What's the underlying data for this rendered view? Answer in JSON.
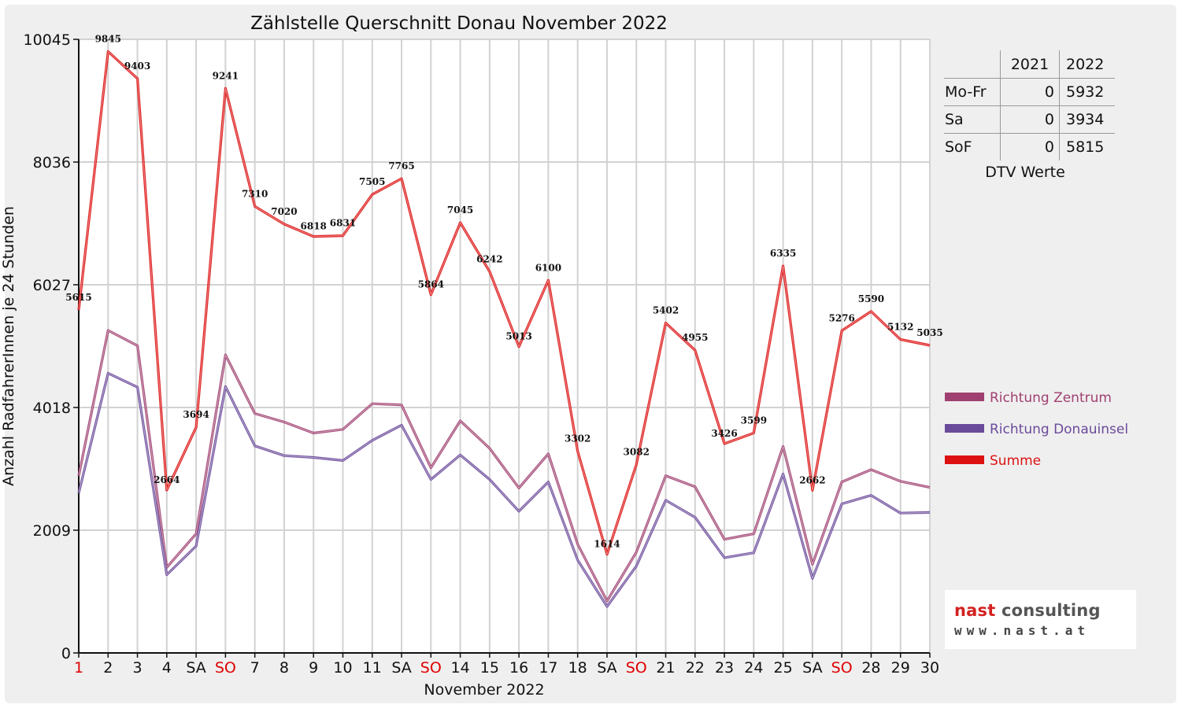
{
  "chart_data": {
    "type": "line",
    "title": "Zählstelle Querschnitt Donau November 2022",
    "xlabel": "November 2022",
    "ylabel": "Anzahl RadfahrerInnen je 24 Stunden",
    "ylim": [
      0,
      10045
    ],
    "yticks": [
      "0",
      "2009",
      "4018",
      "6027",
      "8036",
      "10045"
    ],
    "grid": true,
    "legend_position": "right",
    "categories": [
      "1",
      "2",
      "3",
      "4",
      "SA",
      "SO",
      "7",
      "8",
      "9",
      "10",
      "11",
      "SA",
      "SO",
      "14",
      "15",
      "16",
      "17",
      "18",
      "SA",
      "SO",
      "21",
      "22",
      "23",
      "24",
      "25",
      "SA",
      "SO",
      "28",
      "29",
      "30"
    ],
    "red_categories": [
      0,
      5,
      12,
      19,
      26
    ],
    "series": [
      {
        "name": "Richtung Zentrum",
        "color": "#a04070",
        "values": [
          2900,
          5280,
          5030,
          1400,
          1950,
          4880,
          3920,
          3780,
          3600,
          3660,
          4080,
          4060,
          3030,
          3800,
          3350,
          2700,
          3260,
          1780,
          850,
          1650,
          2900,
          2720,
          1860,
          1950,
          3380,
          1450,
          2800,
          3000,
          2810,
          2710
        ]
      },
      {
        "name": "Richtung Donauinsel",
        "color": "#6a4a9a",
        "values": [
          2620,
          4580,
          4350,
          1280,
          1750,
          4360,
          3390,
          3230,
          3200,
          3150,
          3480,
          3730,
          2840,
          3240,
          2840,
          2320,
          2800,
          1520,
          760,
          1420,
          2500,
          2220,
          1560,
          1640,
          2930,
          1220,
          2440,
          2580,
          2290,
          2300
        ]
      },
      {
        "name": "Summe",
        "color": "#dd1111",
        "values": [
          5615,
          9845,
          9403,
          2664,
          3694,
          9241,
          7310,
          7020,
          6818,
          6831,
          7505,
          7765,
          5864,
          7045,
          6242,
          5013,
          6100,
          3302,
          1614,
          3082,
          5402,
          4955,
          3426,
          3599,
          6335,
          2662,
          5276,
          5590,
          5132,
          5035
        ]
      }
    ],
    "data_labels": [
      "5615",
      "9845",
      "9403",
      "2664",
      "3694",
      "9241",
      "7310",
      "7020",
      "6818",
      "6831",
      "7505",
      "7765",
      "5864",
      "7045",
      "6242",
      "5013",
      "6100",
      "3302",
      "1614",
      "3082",
      "5402",
      "4955",
      "3426",
      "3599",
      "6335",
      "2662",
      "5276",
      "5590",
      "5132",
      "5035"
    ]
  },
  "dtv_table": {
    "headers": [
      "",
      "2021",
      "2022"
    ],
    "rows": [
      {
        "label": "Mo-Fr",
        "v2021": "0",
        "v2022": "5932"
      },
      {
        "label": "Sa",
        "v2021": "0",
        "v2022": "3934"
      },
      {
        "label": "SoF",
        "v2021": "0",
        "v2022": "5815"
      }
    ],
    "caption": "DTV Werte"
  },
  "logo": {
    "name_part1": "nast",
    "name_part2": " consulting",
    "url": "www.nast.at"
  }
}
